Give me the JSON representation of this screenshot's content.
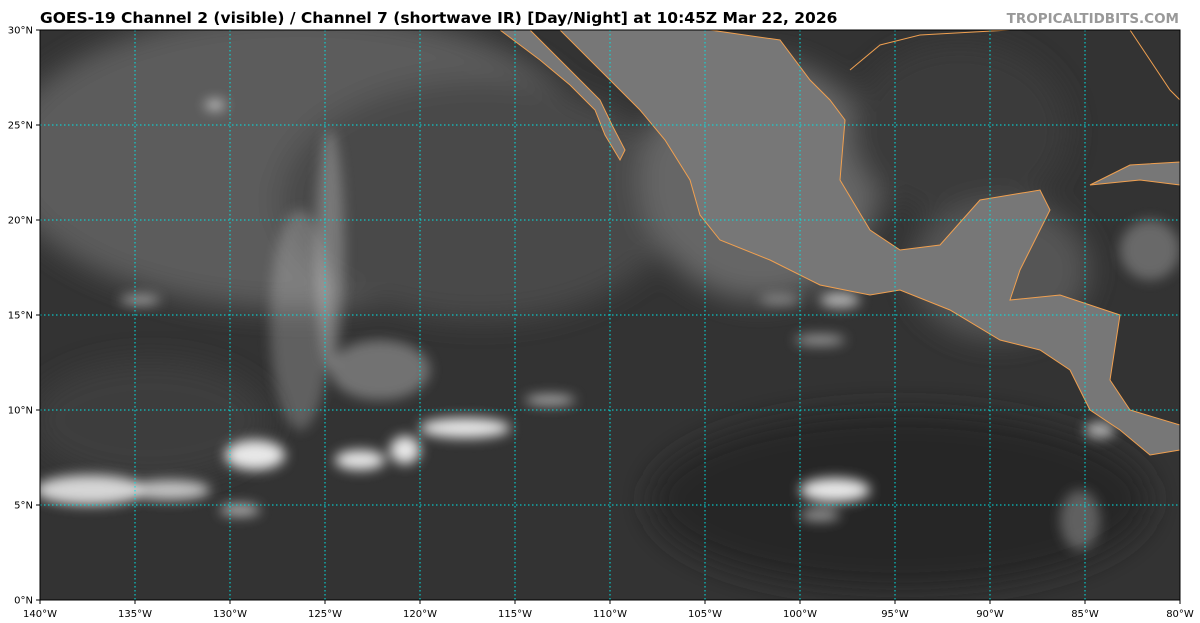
{
  "title": "GOES-19 Channel 2 (visible) / Channel 7 (shortwave IR) [Day/Night] at 10:45Z Mar 22, 2026",
  "watermark": "TROPICALTIDBITS.COM",
  "map": {
    "extent": {
      "lon": [
        -140,
        -80
      ],
      "lat": [
        0,
        30
      ]
    },
    "lat_ticks": [
      {
        "value": 0,
        "label": "0°N"
      },
      {
        "value": 5,
        "label": "5°N"
      },
      {
        "value": 10,
        "label": "10°N"
      },
      {
        "value": 15,
        "label": "15°N"
      },
      {
        "value": 20,
        "label": "20°N"
      },
      {
        "value": 25,
        "label": "25°N"
      },
      {
        "value": 30,
        "label": "30°N"
      }
    ],
    "lon_ticks": [
      {
        "value": -140,
        "label": "140°W"
      },
      {
        "value": -135,
        "label": "135°W"
      },
      {
        "value": -130,
        "label": "130°W"
      },
      {
        "value": -125,
        "label": "125°W"
      },
      {
        "value": -120,
        "label": "120°W"
      },
      {
        "value": -115,
        "label": "115°W"
      },
      {
        "value": -110,
        "label": "110°W"
      },
      {
        "value": -105,
        "label": "105°W"
      },
      {
        "value": -100,
        "label": "100°W"
      },
      {
        "value": -95,
        "label": "95°W"
      },
      {
        "value": -90,
        "label": "90°W"
      },
      {
        "value": -85,
        "label": "85°W"
      },
      {
        "value": -80,
        "label": "80°W"
      }
    ],
    "colors": {
      "gridline": "#00e5e5",
      "coastline": "#f0a050",
      "background_dark": "#2e2e2e",
      "cloud": "#e8e8e8"
    }
  }
}
